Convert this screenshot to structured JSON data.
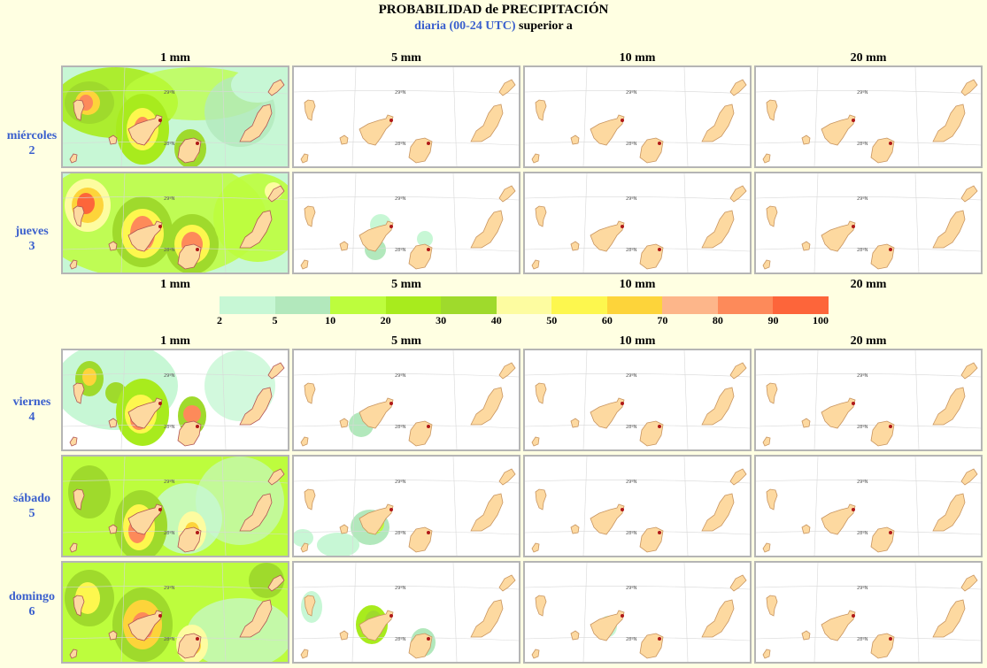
{
  "title": "PROBABILIDAD de PRECIPITACIÓN",
  "subtitle_blue": "diaria (00-24 UTC)",
  "subtitle_rest": " superior a",
  "columns": [
    "1 mm",
    "5 mm",
    "10 mm",
    "20 mm"
  ],
  "rows": [
    {
      "day": "miércoles",
      "num": "2"
    },
    {
      "day": "jueves",
      "num": "3"
    },
    {
      "day": "viernes",
      "num": "4"
    },
    {
      "day": "sábado",
      "num": "5"
    },
    {
      "day": "domingo",
      "num": "6"
    }
  ],
  "legend": {
    "ticks": [
      "2",
      "5",
      "10",
      "20",
      "30",
      "40",
      "50",
      "60",
      "70",
      "80",
      "90",
      "100"
    ],
    "colors": [
      "#c7f7d5",
      "#b2e8bc",
      "#bdfd3d",
      "#a8eb1d",
      "#9fda2c",
      "#fdfca0",
      "#fdf74e",
      "#fdd43a",
      "#fdb68a",
      "#fd8a5a",
      "#fd653a"
    ]
  },
  "chart_data": {
    "type": "heatmap",
    "title": "PROBABILIDAD de PRECIPITACIÓN",
    "subtitle": "diaria (00-24 UTC) superior a",
    "thresholds": [
      "1 mm",
      "5 mm",
      "10 mm",
      "20 mm"
    ],
    "days": [
      "miércoles 2",
      "jueves 3",
      "viernes 4",
      "sábado 5",
      "domingo 6"
    ],
    "legend_classes": [
      2,
      5,
      10,
      20,
      30,
      40,
      50,
      60,
      70,
      80,
      90,
      100
    ],
    "note_peak_probability_class_per_panel": [
      [
        80,
        0,
        0,
        0
      ],
      [
        90,
        5,
        0,
        0
      ],
      [
        80,
        5,
        0,
        0
      ],
      [
        80,
        10,
        0,
        0
      ],
      [
        80,
        20,
        5,
        0
      ]
    ]
  }
}
